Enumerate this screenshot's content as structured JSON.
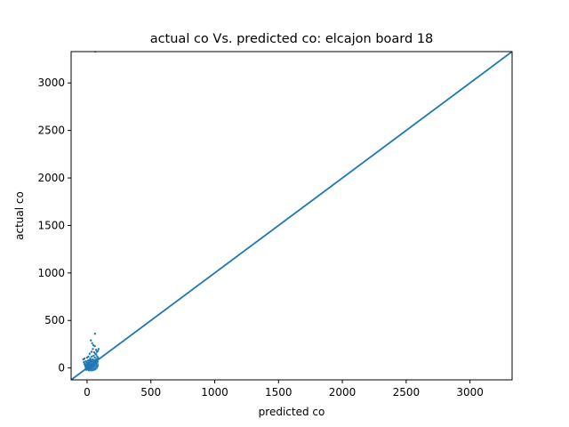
{
  "chart_data": {
    "type": "scatter",
    "title": "actual co Vs. predicted co: elcajon board 18",
    "xlabel": "predicted co",
    "ylabel": "actual co",
    "xlim": [
      -125,
      3330
    ],
    "ylim": [
      -125,
      3330
    ],
    "xticks": [
      0,
      500,
      1000,
      1500,
      2000,
      2500,
      3000
    ],
    "yticks": [
      0,
      500,
      1000,
      1500,
      2000,
      2500,
      3000
    ],
    "grid": false,
    "reference_line": {
      "from": [
        -125,
        -125
      ],
      "to": [
        3330,
        3330
      ],
      "color": "#1f77b4"
    },
    "point_color": "#1f77b4",
    "points": [
      [
        -30,
        90
      ],
      [
        -25,
        60
      ],
      [
        -20,
        40
      ],
      [
        -15,
        20
      ],
      [
        -12,
        -10
      ],
      [
        -10,
        70
      ],
      [
        -8,
        10
      ],
      [
        -5,
        -20
      ],
      [
        -3,
        30
      ],
      [
        0,
        0
      ],
      [
        2,
        50
      ],
      [
        5,
        -15
      ],
      [
        8,
        20
      ],
      [
        10,
        80
      ],
      [
        12,
        5
      ],
      [
        15,
        40
      ],
      [
        18,
        -8
      ],
      [
        20,
        60
      ],
      [
        22,
        15
      ],
      [
        25,
        100
      ],
      [
        27,
        35
      ],
      [
        30,
        -5
      ],
      [
        32,
        70
      ],
      [
        35,
        25
      ],
      [
        37,
        120
      ],
      [
        40,
        45
      ],
      [
        42,
        10
      ],
      [
        45,
        90
      ],
      [
        47,
        55
      ],
      [
        50,
        20
      ],
      [
        52,
        130
      ],
      [
        55,
        75
      ],
      [
        57,
        30
      ],
      [
        60,
        110
      ],
      [
        62,
        60
      ],
      [
        65,
        150
      ],
      [
        67,
        85
      ],
      [
        70,
        40
      ],
      [
        72,
        140
      ],
      [
        75,
        95
      ],
      [
        77,
        170
      ],
      [
        80,
        120
      ],
      [
        82,
        65
      ],
      [
        85,
        180
      ],
      [
        87,
        105
      ],
      [
        90,
        200
      ],
      [
        60,
        230
      ],
      [
        40,
        260
      ],
      [
        30,
        290
      ],
      [
        50,
        240
      ],
      [
        62,
        360
      ],
      [
        45,
        200
      ],
      [
        20,
        150
      ],
      [
        10,
        120
      ],
      [
        0,
        110
      ],
      [
        -20,
        100
      ],
      [
        35,
        170
      ],
      [
        70,
        190
      ],
      [
        55,
        165
      ],
      [
        25,
        80
      ],
      [
        5,
        45
      ],
      [
        15,
        -25
      ],
      [
        40,
        -20
      ],
      [
        60,
        -10
      ],
      [
        80,
        20
      ],
      [
        65,
        3330
      ]
    ]
  }
}
